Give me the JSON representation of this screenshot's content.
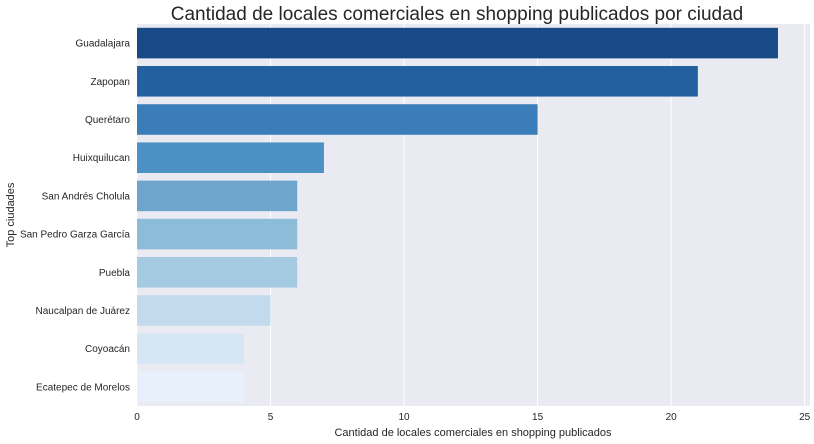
{
  "chart_data": {
    "type": "bar",
    "orientation": "horizontal",
    "title": "Cantidad de locales comerciales  en shopping publicados por ciudad",
    "xlabel": "Cantidad de locales comerciales en shopping publicados",
    "ylabel": "Top ciudades",
    "categories": [
      "Guadalajara",
      "Zapopan",
      "Querétaro",
      "Huixquilucan",
      "San Andrés Cholula",
      "San Pedro Garza García",
      "Puebla",
      "Naucalpan de Juárez",
      "Coyoacán",
      "Ecatepec de Morelos"
    ],
    "values": [
      24,
      21,
      15,
      7,
      6,
      6,
      6,
      5,
      4,
      4
    ],
    "xlim": [
      0,
      25.2
    ],
    "xticks": [
      0,
      5,
      10,
      15,
      20,
      25
    ],
    "grid": true,
    "colors": [
      "#174a86",
      "#22609f",
      "#3a7db8",
      "#4c91c3",
      "#6da5cd",
      "#8cbcd8",
      "#a5cbe2",
      "#c3d9ec",
      "#d7e6f4",
      "#e8f1fb"
    ],
    "background": "#eaeaf2",
    "grid_color": "#ffffff"
  }
}
